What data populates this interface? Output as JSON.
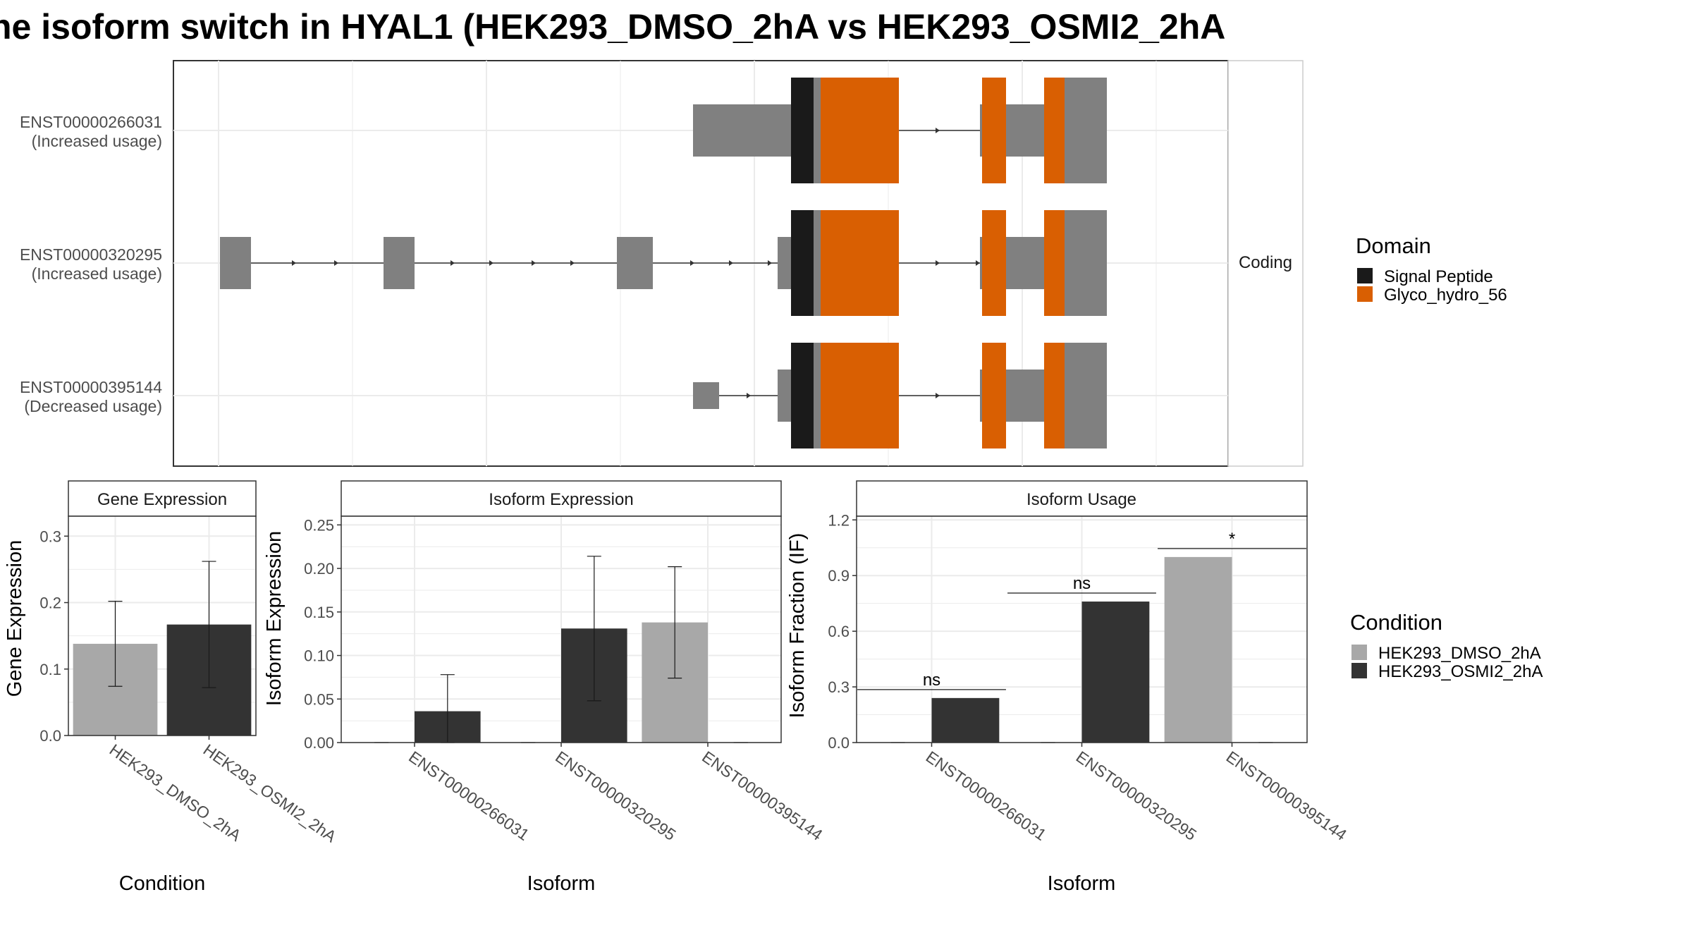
{
  "title": "he isoform switch in HYAL1 (HEK293_DMSO_2hA vs HEK293_OSMI2_2hA",
  "colors": {
    "dmso": "#a8a8a8",
    "osmi": "#333333",
    "exon": "#808080",
    "signal_peptide": "#1a1a1a",
    "glyco": "#d95f02",
    "grid": "#ebebeb"
  },
  "chart_data": [
    {
      "type": "gene-structure",
      "strip_label": "Coding",
      "legend": {
        "title": "Domain",
        "items": [
          {
            "label": "Signal Peptide",
            "color": "#1a1a1a"
          },
          {
            "label": "Glyco_hydro_56",
            "color": "#d95f02"
          }
        ]
      },
      "transcripts": [
        {
          "id": "ENST00000266031",
          "note": "(Increased usage)"
        },
        {
          "id": "ENST00000320295",
          "note": "(Increased usage)"
        },
        {
          "id": "ENST00000395144",
          "note": "(Decreased usage)"
        }
      ]
    },
    {
      "type": "bar",
      "panel_title": "Gene Expression",
      "xlabel": "Condition",
      "ylabel": "Gene Expression",
      "ylim": [
        0,
        0.33
      ],
      "yticks": [
        "0.0",
        "0.1",
        "0.2",
        "0.3"
      ],
      "categories": [
        "HEK293_DMSO_2hA",
        "HEK293_OSMI2_2hA"
      ],
      "values": [
        0.138,
        0.167
      ],
      "error_low": [
        0.074,
        0.072
      ],
      "error_high": [
        0.202,
        0.262
      ]
    },
    {
      "type": "bar",
      "panel_title": "Isoform Expression",
      "xlabel": "Isoform",
      "ylabel": "Isoform Expression",
      "ylim": [
        0,
        0.26
      ],
      "yticks": [
        "0.00",
        "0.05",
        "0.10",
        "0.15",
        "0.20",
        "0.25"
      ],
      "categories": [
        "ENST00000266031",
        "ENST00000320295",
        "ENST00000395144"
      ],
      "series": [
        {
          "name": "HEK293_DMSO_2hA",
          "values": [
            0.0,
            0.0,
            0.138
          ],
          "error_low": [
            0.0,
            0.0,
            0.074
          ],
          "error_high": [
            0.0,
            0.0,
            0.202
          ]
        },
        {
          "name": "HEK293_OSMI2_2hA",
          "values": [
            0.036,
            0.131,
            0.0
          ],
          "error_low": [
            0.0,
            0.048,
            0.0
          ],
          "error_high": [
            0.078,
            0.214,
            0.0
          ]
        }
      ]
    },
    {
      "type": "bar",
      "panel_title": "Isoform Usage",
      "xlabel": "Isoform",
      "ylabel": "Isoform Fraction (IF)",
      "ylim": [
        0,
        1.22
      ],
      "yticks": [
        "0.0",
        "0.3",
        "0.6",
        "0.9",
        "1.2"
      ],
      "categories": [
        "ENST00000266031",
        "ENST00000320295",
        "ENST00000395144"
      ],
      "series": [
        {
          "name": "HEK293_DMSO_2hA",
          "values": [
            0.0,
            0.0,
            1.0
          ]
        },
        {
          "name": "HEK293_OSMI2_2hA",
          "values": [
            0.24,
            0.76,
            0.0
          ]
        }
      ],
      "significance": [
        "ns",
        "ns",
        "*"
      ]
    }
  ],
  "condition_legend": {
    "title": "Condition",
    "items": [
      {
        "label": "HEK293_DMSO_2hA",
        "color": "#a8a8a8"
      },
      {
        "label": "HEK293_OSMI2_2hA",
        "color": "#333333"
      }
    ]
  }
}
